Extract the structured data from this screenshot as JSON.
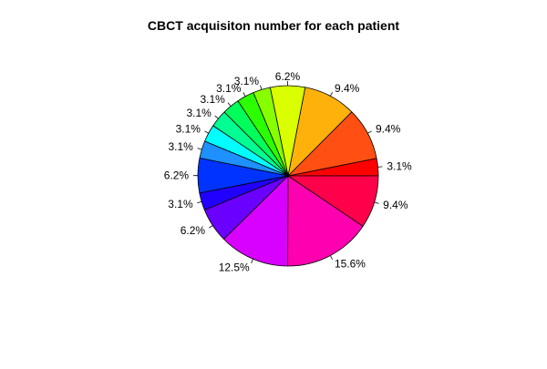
{
  "chart_data": {
    "type": "pie",
    "title": "CBCT acquisiton number for each patient",
    "direction": "counterclockwise",
    "start_angle_deg": 0,
    "slices": [
      {
        "value": 3.1,
        "label": "3.1%",
        "color": "#FF0000"
      },
      {
        "value": 9.4,
        "label": "9.4%",
        "color": "#FF4F12"
      },
      {
        "value": 9.4,
        "label": "9.4%",
        "color": "#FFB10B"
      },
      {
        "value": 6.2,
        "label": "6.2%",
        "color": "#D9FF00"
      },
      {
        "value": 3.1,
        "label": "3.1%",
        "color": "#88FF00"
      },
      {
        "value": 3.1,
        "label": "3.1%",
        "color": "#2CFF00"
      },
      {
        "value": 3.1,
        "label": "3.1%",
        "color": "#00FF5A"
      },
      {
        "value": 3.1,
        "label": "3.1%",
        "color": "#00FF93"
      },
      {
        "value": 3.1,
        "label": "3.1%",
        "color": "#00FFFF"
      },
      {
        "value": 3.1,
        "label": "3.1%",
        "color": "#1E90FF"
      },
      {
        "value": 6.2,
        "label": "6.2%",
        "color": "#0033FF"
      },
      {
        "value": 3.1,
        "label": "3.1%",
        "color": "#2200FF"
      },
      {
        "value": 6.2,
        "label": "6.2%",
        "color": "#6A00FF"
      },
      {
        "value": 12.5,
        "label": "12.5%",
        "color": "#D800FF"
      },
      {
        "value": 15.6,
        "label": "15.6%",
        "color": "#FF00B0"
      },
      {
        "value": 9.4,
        "label": "9.4%",
        "color": "#FF004A"
      }
    ]
  }
}
